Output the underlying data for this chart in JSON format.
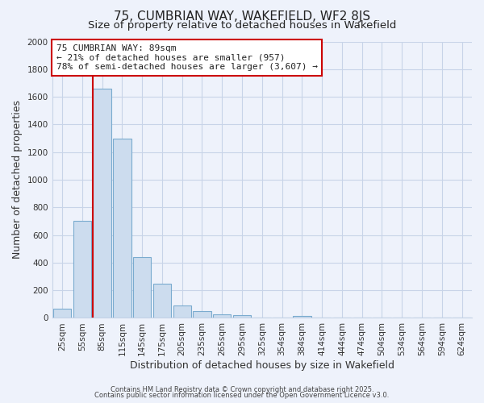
{
  "title": "75, CUMBRIAN WAY, WAKEFIELD, WF2 8JS",
  "subtitle": "Size of property relative to detached houses in Wakefield",
  "xlabel": "Distribution of detached houses by size in Wakefield",
  "ylabel": "Number of detached properties",
  "categories": [
    "25sqm",
    "55sqm",
    "85sqm",
    "115sqm",
    "145sqm",
    "175sqm",
    "205sqm",
    "235sqm",
    "265sqm",
    "295sqm",
    "325sqm",
    "354sqm",
    "384sqm",
    "414sqm",
    "444sqm",
    "474sqm",
    "504sqm",
    "534sqm",
    "564sqm",
    "594sqm",
    "624sqm"
  ],
  "values": [
    65,
    700,
    1660,
    1300,
    440,
    250,
    90,
    50,
    25,
    20,
    0,
    0,
    15,
    0,
    0,
    0,
    0,
    0,
    0,
    0,
    0
  ],
  "bar_color": "#ccdcee",
  "bar_edge_color": "#7aabcf",
  "red_line_index": 2,
  "red_line_color": "#cc0000",
  "ylim": [
    0,
    2000
  ],
  "yticks": [
    0,
    200,
    400,
    600,
    800,
    1000,
    1200,
    1400,
    1600,
    1800,
    2000
  ],
  "annotation_title": "75 CUMBRIAN WAY: 89sqm",
  "annotation_line1": "← 21% of detached houses are smaller (957)",
  "annotation_line2": "78% of semi-detached houses are larger (3,607) →",
  "annotation_box_color": "#ffffff",
  "annotation_border_color": "#cc0000",
  "bg_color": "#eef2fb",
  "grid_color": "#c8d4e8",
  "footer1": "Contains HM Land Registry data © Crown copyright and database right 2025.",
  "footer2": "Contains public sector information licensed under the Open Government Licence v3.0.",
  "title_fontsize": 11,
  "subtitle_fontsize": 9.5,
  "axis_label_fontsize": 9,
  "tick_fontsize": 7.5,
  "annotation_fontsize": 8
}
